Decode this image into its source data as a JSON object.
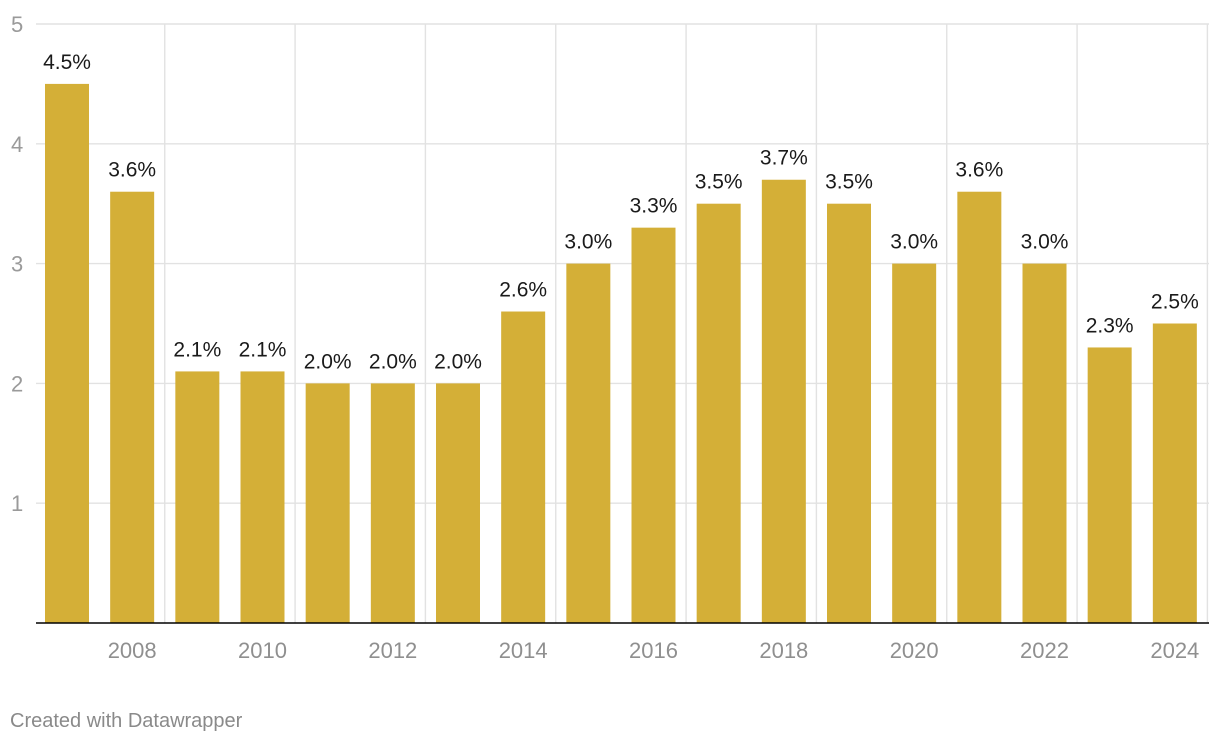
{
  "chart_data": {
    "type": "bar",
    "categories": [
      "2007",
      "2008",
      "2009",
      "2010",
      "2011",
      "2012",
      "2013",
      "2014",
      "2015",
      "2016",
      "2017",
      "2018",
      "2019",
      "2020",
      "2021",
      "2022",
      "2023",
      "2024"
    ],
    "x_tick_labels": [
      "2008",
      "2010",
      "2012",
      "2014",
      "2016",
      "2018",
      "2020",
      "2022",
      "2024"
    ],
    "values": [
      4.5,
      3.6,
      2.1,
      2.1,
      2.0,
      2.0,
      2.0,
      2.6,
      3.0,
      3.3,
      3.5,
      3.7,
      3.5,
      3.0,
      3.6,
      3.0,
      2.3,
      2.5
    ],
    "data_labels": [
      "4.5%",
      "3.6%",
      "2.1%",
      "2.1%",
      "2.0%",
      "2.0%",
      "2.0%",
      "2.6%",
      "3.0%",
      "3.3%",
      "3.5%",
      "3.7%",
      "3.5%",
      "3.0%",
      "3.6%",
      "3.0%",
      "2.3%",
      "2.5%"
    ],
    "y_ticks": [
      1,
      2,
      3,
      4,
      5
    ],
    "ylim": [
      0,
      5
    ],
    "grid": true,
    "bar_color": "#d4af37",
    "title": "",
    "xlabel": "",
    "ylabel": ""
  },
  "footer": {
    "credit": "Created with Datawrapper"
  }
}
